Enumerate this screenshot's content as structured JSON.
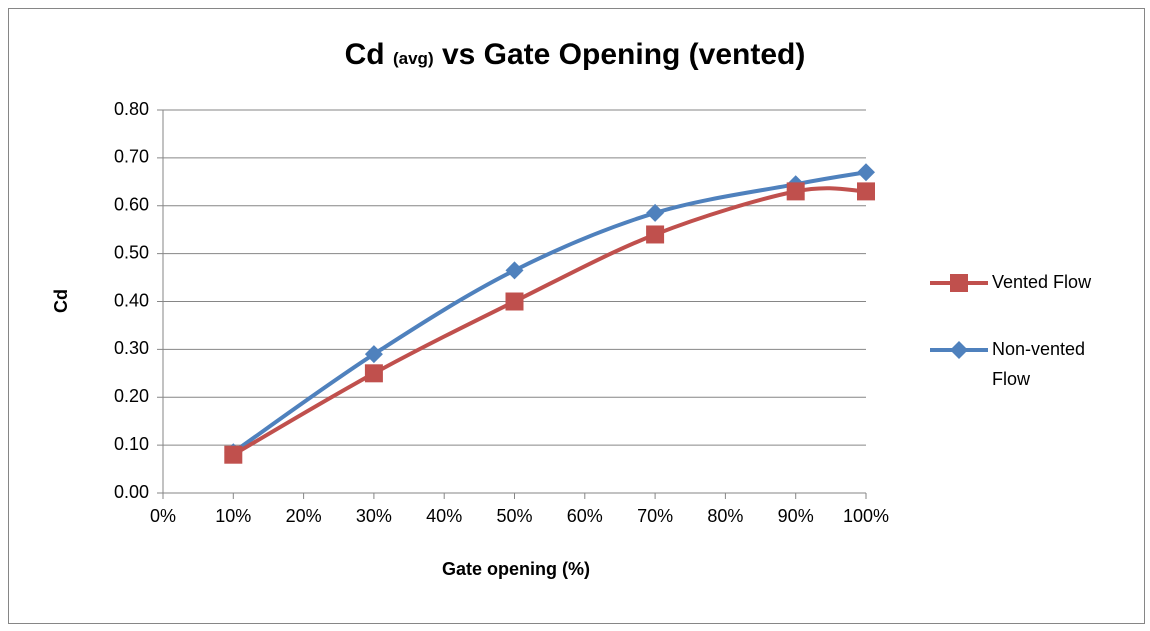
{
  "chart_data": {
    "type": "line",
    "title": {
      "main": "Cd",
      "subscript": "(avg)",
      "rest": "vs Gate Opening (vented)"
    },
    "x_label": "Gate opening (%)",
    "y_label": "Cd",
    "x": [
      10,
      30,
      50,
      70,
      90,
      100
    ],
    "series": [
      {
        "name": "Vented Flow",
        "color": "#c0504d",
        "marker": "square",
        "values": [
          0.08,
          0.25,
          0.4,
          0.54,
          0.63,
          0.63
        ]
      },
      {
        "name": "Non-vented Flow",
        "color": "#4f81bd",
        "marker": "diamond",
        "values": [
          0.085,
          0.29,
          0.465,
          0.585,
          0.645,
          0.67
        ]
      }
    ],
    "xlim": [
      0,
      100
    ],
    "xticks": [
      {
        "value": 0,
        "label": "0%"
      },
      {
        "value": 10,
        "label": "10%"
      },
      {
        "value": 20,
        "label": "20%"
      },
      {
        "value": 30,
        "label": "30%"
      },
      {
        "value": 40,
        "label": "40%"
      },
      {
        "value": 50,
        "label": "50%"
      },
      {
        "value": 60,
        "label": "60%"
      },
      {
        "value": 70,
        "label": "70%"
      },
      {
        "value": 80,
        "label": "80%"
      },
      {
        "value": 90,
        "label": "90%"
      },
      {
        "value": 100,
        "label": "100%"
      }
    ],
    "ylim": [
      0,
      0.8
    ],
    "yticks": [
      {
        "value": 0,
        "label": "0.00"
      },
      {
        "value": 0.1,
        "label": "0.10"
      },
      {
        "value": 0.2,
        "label": "0.20"
      },
      {
        "value": 0.3,
        "label": "0.30"
      },
      {
        "value": 0.4,
        "label": "0.40"
      },
      {
        "value": 0.5,
        "label": "0.50"
      },
      {
        "value": 0.6,
        "label": "0.60"
      },
      {
        "value": 0.7,
        "label": "0.70"
      },
      {
        "value": 0.8,
        "label": "0.80"
      }
    ],
    "grid": true,
    "smooth": true,
    "legend": "right"
  }
}
